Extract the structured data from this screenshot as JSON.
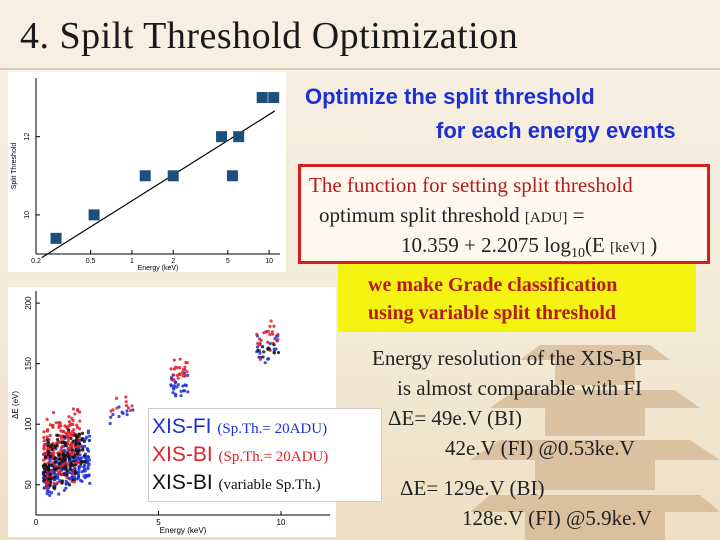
{
  "slide": {
    "title": "4. Spilt Threshold Optimization"
  },
  "heading": {
    "line1": "Optimize the split threshold",
    "line2": "for each energy events"
  },
  "function_box": {
    "line1": "The function for setting split threshold",
    "line2_prefix": "optimum split threshold",
    "line2_unit": "[ADU]",
    "line2_suffix": "=",
    "line3_prefix": "10.359 + 2.2075 log",
    "line3_sub": "10",
    "line3_mid": "(E",
    "line3_unit": "[keV]",
    "line3_end": ")"
  },
  "grade_box": {
    "line1": "we make Grade classification",
    "line2": "using variable split threshold"
  },
  "resolution": {
    "line1": "Energy resolution of the XIS-BI",
    "line2": "is almost comparable with FI",
    "line3": "ΔE= 49e.V (BI)",
    "line4": "42e.V (FI)  @0.53ke.V",
    "line5": "ΔE= 129e.V (BI)",
    "line6": "128e.V (FI)  @5.9ke.V"
  },
  "legend": {
    "fi_name": "XIS-FI",
    "fi_note": "(Sp.Th.= 20ADU)",
    "bi_name": "XIS-BI",
    "bi_note": "(Sp.Th.= 20ADU)",
    "bi_var_name": "XIS-BI",
    "bi_var_note": "(variable Sp.Th.)",
    "colors": {
      "fi": "#1c2fd6",
      "bi": "#e0202a",
      "bi_var": "#111111"
    }
  },
  "chart_data": [
    {
      "type": "scatter",
      "title": "",
      "xlabel": "Energy (keV)",
      "ylabel": "Split Threshold",
      "xscale": "log",
      "xlim": [
        0.2,
        12
      ],
      "ylim": [
        9,
        13.5
      ],
      "xticks": [
        "0.2",
        "0.5",
        "1",
        "2",
        "5",
        "10"
      ],
      "yticks": [
        "10",
        "12"
      ],
      "points": [
        {
          "x": 0.28,
          "y": 9.4
        },
        {
          "x": 0.53,
          "y": 10.0
        },
        {
          "x": 1.25,
          "y": 11.0
        },
        {
          "x": 2.0,
          "y": 11.0
        },
        {
          "x": 4.5,
          "y": 12.0
        },
        {
          "x": 5.4,
          "y": 11.0
        },
        {
          "x": 6.0,
          "y": 12.0
        },
        {
          "x": 8.9,
          "y": 13.0
        },
        {
          "x": 10.8,
          "y": 13.0
        }
      ],
      "fit": {
        "intercept": 10.359,
        "slope": 2.2075
      },
      "grid": false
    },
    {
      "type": "scatter",
      "title": "",
      "xlabel": "Energy (keV)",
      "ylabel": "ΔE (eV)",
      "xlim": [
        0,
        12
      ],
      "ylim": [
        25,
        210
      ],
      "xticks": [
        "0",
        "5",
        "10"
      ],
      "yticks": [
        "50",
        "100",
        "150",
        "200"
      ],
      "series": [
        {
          "name": "XIS-FI",
          "color": "#1c2fd6"
        },
        {
          "name": "XIS-BI",
          "color": "#e0202a"
        },
        {
          "name": "XIS-BI",
          "color": "#111111"
        }
      ],
      "grid": false
    }
  ]
}
